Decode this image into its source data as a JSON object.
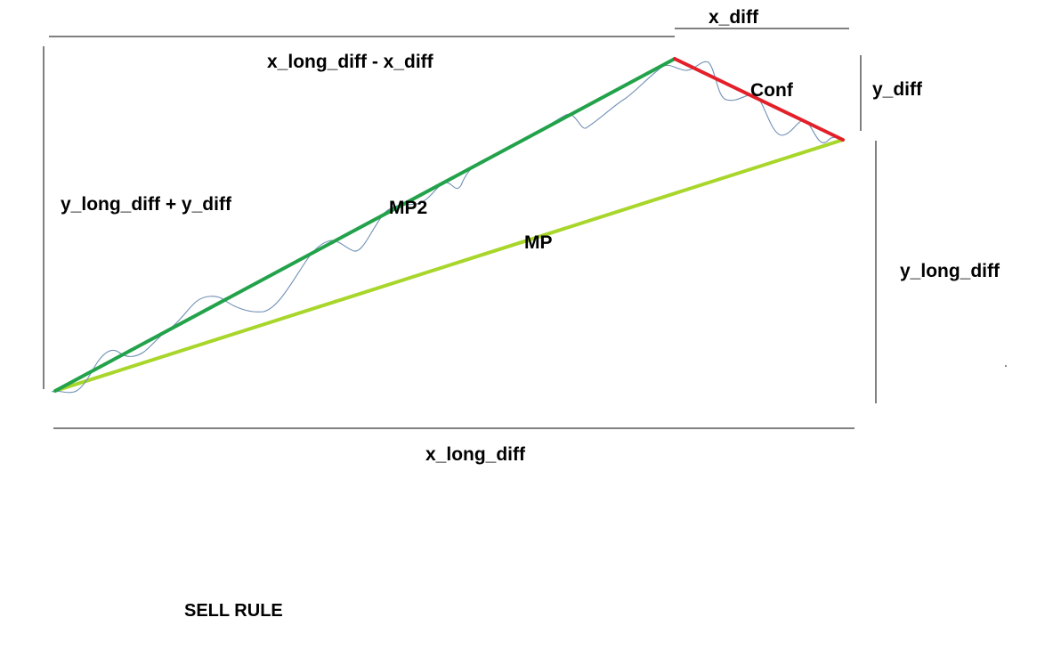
{
  "labels": {
    "x_diff": "x_diff",
    "x_long_minus_x_diff": "x_long_diff - x_diff",
    "y_diff": "y_diff",
    "conf": "Conf",
    "y_long_plus_y_diff": "y_long_diff + y_diff",
    "mp2": "MP2",
    "mp": "MP",
    "y_long_diff": "y_long_diff",
    "x_long_diff": "x_long_diff",
    "sell_rule": "SELL RULE"
  },
  "colors": {
    "mp2_line": "#22a24a",
    "mp_line": "#a8d62a",
    "conf_line": "#e3202a",
    "price_path": "#6f8fb5",
    "dimension_line": "#000000"
  }
}
